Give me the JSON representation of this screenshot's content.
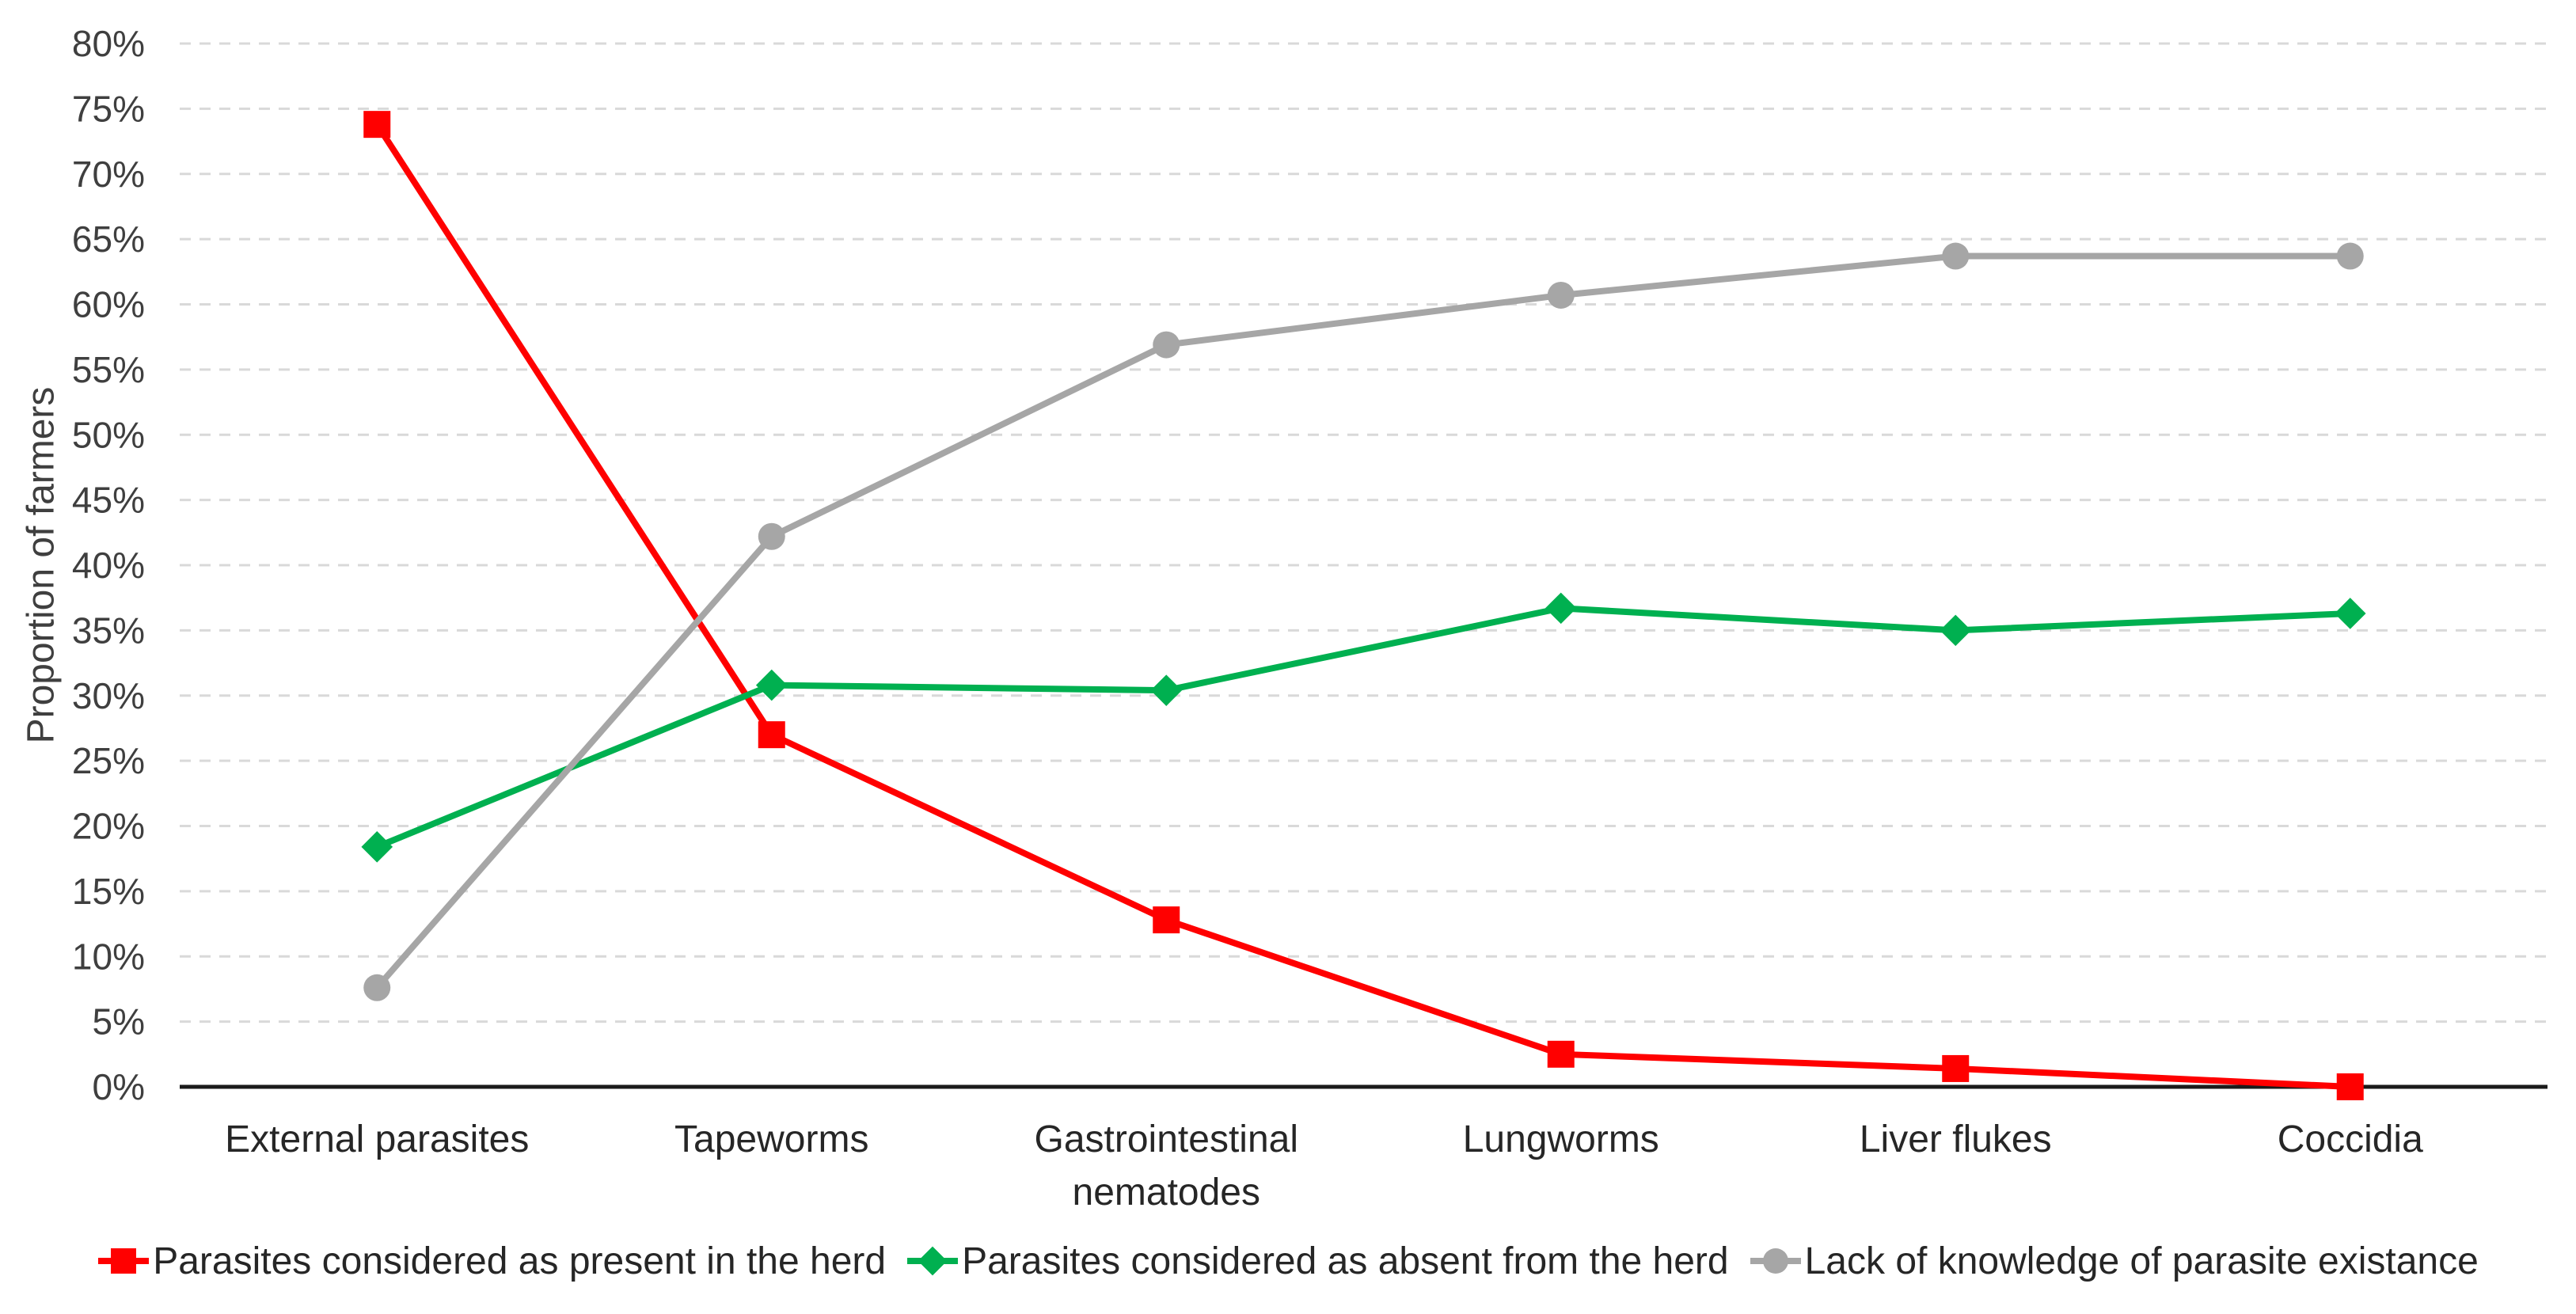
{
  "chart_data": {
    "type": "line",
    "title": "",
    "xlabel": "",
    "ylabel": "Proportion of farmers",
    "categories": [
      "External parasites",
      "Tapeworms",
      "Gastrointestinal nematodes",
      "Lungworms",
      "Liver flukes",
      "Coccidia"
    ],
    "series": [
      {
        "name": "Parasites considered as present in the herd",
        "slug": "present-in-herd",
        "color": "#FF0000",
        "marker": "square",
        "values": [
          73.8,
          27.0,
          12.8,
          2.5,
          1.4,
          0.0
        ]
      },
      {
        "name": "Parasites considered as absent from the herd",
        "slug": "absent-from-herd",
        "color": "#00B050",
        "marker": "diamond",
        "values": [
          18.4,
          30.8,
          30.4,
          36.7,
          35.0,
          36.3
        ]
      },
      {
        "name": "Lack of knowledge of parasite existance",
        "slug": "lack-of-knowledge",
        "color": "#A6A6A6",
        "marker": "circle",
        "values": [
          7.6,
          42.2,
          56.9,
          60.7,
          63.7,
          63.7
        ]
      }
    ],
    "ylim": [
      0,
      80
    ],
    "ytick_step": 5,
    "ytick_suffix": "%",
    "grid": "horizontal-dashed",
    "legend_position": "bottom",
    "colors": {
      "grid_line": "#D9D9D9",
      "axis_line": "#1a1a1a",
      "tick_text": "#3f3f3f",
      "category_text": "#262626",
      "legend_text": "#262626",
      "background": "#FFFFFF"
    }
  }
}
